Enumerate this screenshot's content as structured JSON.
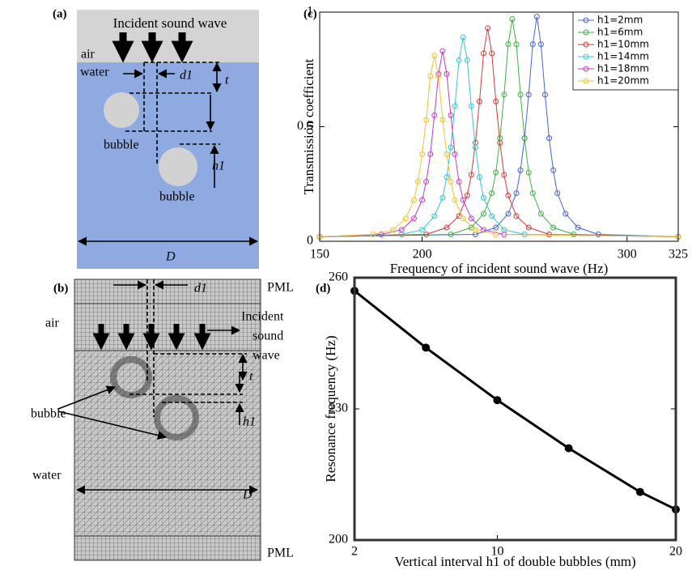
{
  "diagram_a": {
    "label": "(a)",
    "incident": "Incident sound wave",
    "air": "air",
    "water": "water",
    "d1": "d1",
    "t": "t",
    "bubble_1": "bubble",
    "bubble_2": "bubble",
    "h1": "h1",
    "D": "D"
  },
  "diagram_b": {
    "label": "(b)",
    "d1": "d1",
    "pml_top": "PML",
    "air": "air",
    "incident_1": "Incident",
    "incident_2": "sound",
    "incident_3": "wave",
    "t": "t",
    "bubble": "bubble",
    "h1": "h1",
    "water": "water",
    "D": "D",
    "pml_bottom": "PML"
  },
  "chart_data": [
    {
      "type": "line",
      "label": "(c)",
      "xlabel": "Frequency of incident sound wave (Hz)",
      "ylabel": "Transmission coefficient",
      "xlim": [
        150,
        325
      ],
      "ylim": [
        0,
        1
      ],
      "xticks": [
        150,
        200,
        300,
        325
      ],
      "yticks": [
        0,
        0.5,
        1
      ],
      "legend": "upper right",
      "markers": "open-circle",
      "series": [
        {
          "name": "h1=2mm",
          "color": "#4b63d6",
          "x": [
            150,
            226,
            236,
            242,
            246,
            248,
            250,
            252,
            254,
            256,
            258,
            260,
            262,
            264,
            266,
            270,
            276,
            286,
            325
          ],
          "values": [
            0.02,
            0.03,
            0.06,
            0.12,
            0.21,
            0.31,
            0.45,
            0.64,
            0.86,
            0.98,
            0.86,
            0.64,
            0.45,
            0.31,
            0.21,
            0.12,
            0.06,
            0.03,
            0.02
          ]
        },
        {
          "name": "h1=6mm",
          "color": "#3fb043",
          "x": [
            150,
            214,
            224,
            230,
            234,
            236,
            238,
            240,
            242,
            244,
            246,
            248,
            250,
            252,
            254,
            258,
            264,
            274,
            325
          ],
          "values": [
            0.02,
            0.03,
            0.06,
            0.12,
            0.21,
            0.3,
            0.45,
            0.64,
            0.86,
            0.97,
            0.86,
            0.64,
            0.45,
            0.3,
            0.21,
            0.12,
            0.06,
            0.03,
            0.02
          ]
        },
        {
          "name": "h1=10mm",
          "color": "#d63a3a",
          "x": [
            150,
            202,
            212,
            218,
            222,
            224,
            226,
            228,
            230,
            232,
            234,
            236,
            238,
            240,
            242,
            246,
            252,
            262,
            325
          ],
          "values": [
            0.02,
            0.03,
            0.06,
            0.11,
            0.2,
            0.29,
            0.43,
            0.61,
            0.82,
            0.93,
            0.82,
            0.61,
            0.43,
            0.29,
            0.2,
            0.11,
            0.06,
            0.03,
            0.02
          ]
        },
        {
          "name": "h1=14mm",
          "color": "#35c4d4",
          "x": [
            150,
            190,
            200,
            206,
            210,
            212,
            214,
            216,
            218,
            220,
            222,
            224,
            226,
            228,
            230,
            234,
            240,
            250,
            325
          ],
          "values": [
            0.02,
            0.03,
            0.05,
            0.11,
            0.19,
            0.28,
            0.41,
            0.59,
            0.79,
            0.89,
            0.79,
            0.59,
            0.41,
            0.28,
            0.19,
            0.11,
            0.05,
            0.03,
            0.02
          ]
        },
        {
          "name": "h1=18mm",
          "color": "#c23cc8",
          "x": [
            150,
            180,
            190,
            196,
            200,
            202,
            204,
            206,
            208,
            210,
            212,
            214,
            216,
            218,
            220,
            224,
            230,
            240,
            325
          ],
          "values": [
            0.02,
            0.03,
            0.05,
            0.1,
            0.18,
            0.26,
            0.38,
            0.55,
            0.73,
            0.83,
            0.73,
            0.55,
            0.38,
            0.26,
            0.18,
            0.1,
            0.05,
            0.03,
            0.02
          ]
        },
        {
          "name": "h1=20mm",
          "color": "#f2c230",
          "x": [
            150,
            176,
            186,
            192,
            196,
            198,
            200,
            202,
            204,
            206,
            208,
            210,
            212,
            214,
            216,
            220,
            226,
            236,
            325
          ],
          "values": [
            0.02,
            0.03,
            0.05,
            0.1,
            0.18,
            0.26,
            0.38,
            0.53,
            0.72,
            0.81,
            0.72,
            0.53,
            0.38,
            0.26,
            0.18,
            0.1,
            0.05,
            0.03,
            0.02
          ]
        }
      ]
    },
    {
      "type": "line",
      "label": "(d)",
      "xlabel": "Vertical interval h1 of double bubbles (mm)",
      "ylabel": "Resonance frequency (Hz)",
      "xlim": [
        2,
        20
      ],
      "ylim": [
        200,
        260
      ],
      "xticks": [
        2,
        10,
        20
      ],
      "yticks": [
        200,
        230,
        260
      ],
      "markers": "filled-circle",
      "series": [
        {
          "color": "#000000",
          "x": [
            2,
            6,
            10,
            14,
            18,
            20
          ],
          "values": [
            257,
            244,
            232,
            221,
            211,
            207
          ]
        }
      ]
    }
  ]
}
